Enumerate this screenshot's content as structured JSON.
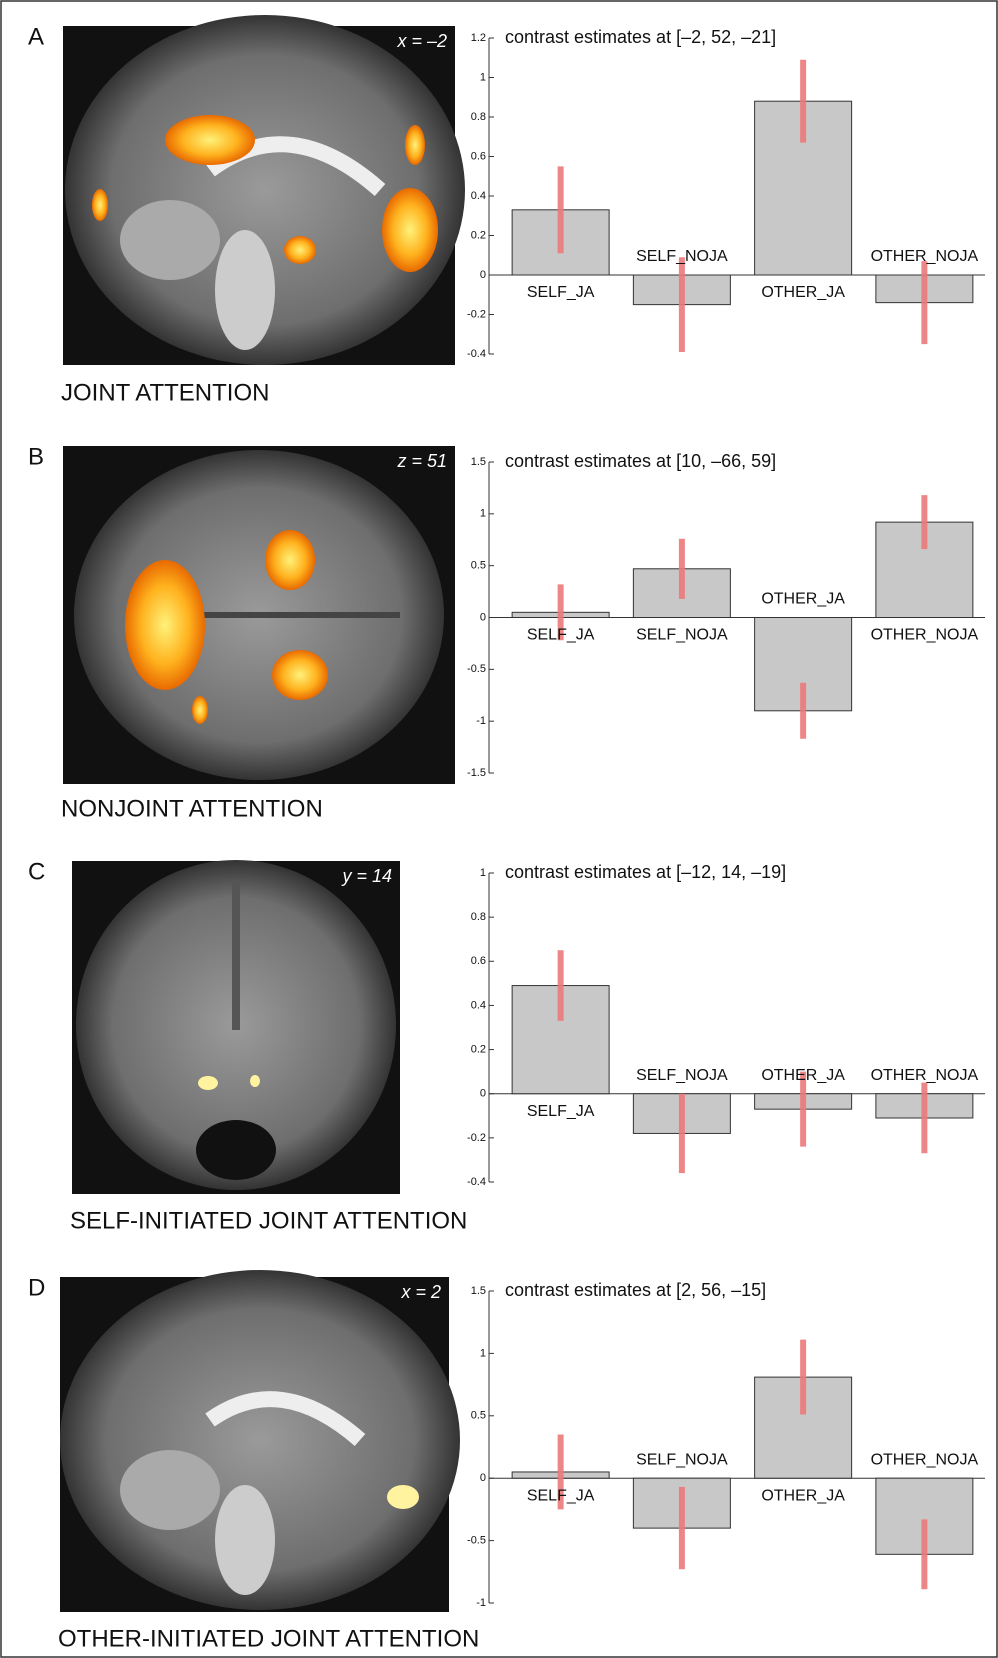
{
  "chart_data": [
    {
      "type": "bar",
      "panel": "A",
      "slice_label": "x = –2",
      "image_label": "JOINT ATTENTION",
      "title": "contrast estimates at [–2, 52, –21]",
      "categories": [
        "SELF_JA",
        "SELF_NOJA",
        "OTHER_JA",
        "OTHER_NOJA"
      ],
      "values": [
        0.33,
        -0.15,
        0.88,
        -0.14
      ],
      "errors": [
        0.22,
        0.24,
        0.21,
        0.21
      ],
      "color": "#c8c8c8",
      "error_color": "#ec7b7b",
      "ylim": [
        -0.4,
        1.2
      ],
      "yticks": [
        -0.4,
        -0.2,
        0,
        0.2,
        0.4,
        0.6,
        0.8,
        1,
        1.2
      ]
    },
    {
      "type": "bar",
      "panel": "B",
      "slice_label": "z = 51",
      "image_label": "NONJOINT ATTENTION",
      "title": "contrast estimates at [10, –66, 59]",
      "categories": [
        "SELF_JA",
        "SELF_NOJA",
        "OTHER_JA",
        "OTHER_NOJA"
      ],
      "values": [
        0.05,
        0.47,
        -0.9,
        0.92
      ],
      "errors": [
        0.27,
        0.29,
        0.27,
        0.26
      ],
      "color": "#c8c8c8",
      "error_color": "#ec7b7b",
      "ylim": [
        -1.5,
        1.5
      ],
      "yticks": [
        -1.5,
        -1,
        -0.5,
        0,
        0.5,
        1,
        1.5
      ]
    },
    {
      "type": "bar",
      "panel": "C",
      "slice_label": "y = 14",
      "image_label": "SELF-INITIATED JOINT ATTENTION",
      "title": "contrast estimates at [–12, 14, –19]",
      "categories": [
        "SELF_JA",
        "SELF_NOJA",
        "OTHER_JA",
        "OTHER_NOJA"
      ],
      "values": [
        0.49,
        -0.18,
        -0.07,
        -0.11
      ],
      "errors": [
        0.16,
        0.18,
        0.17,
        0.16
      ],
      "color": "#c8c8c8",
      "error_color": "#ec7b7b",
      "ylim": [
        -0.4,
        1
      ],
      "yticks": [
        -0.4,
        -0.2,
        0,
        0.2,
        0.4,
        0.6,
        0.8,
        1
      ]
    },
    {
      "type": "bar",
      "panel": "D",
      "slice_label": "x = 2",
      "image_label": "OTHER-INITIATED JOINT ATTENTION",
      "title": "contrast estimates at [2, 56, –15]",
      "categories": [
        "SELF_JA",
        "SELF_NOJA",
        "OTHER_JA",
        "OTHER_NOJA"
      ],
      "values": [
        0.05,
        -0.4,
        0.81,
        -0.61
      ],
      "errors": [
        0.3,
        0.33,
        0.3,
        0.28
      ],
      "color": "#c8c8c8",
      "error_color": "#ec7b7b",
      "ylim": [
        -1,
        1.5
      ],
      "yticks": [
        -1,
        -0.5,
        0,
        0.5,
        1,
        1.5
      ]
    }
  ]
}
